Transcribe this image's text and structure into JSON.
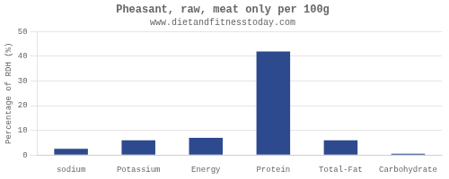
{
  "chart_data": {
    "type": "bar",
    "title": "Pheasant, raw, meat only per 100g",
    "subtitle": "www.dietandfitnesstoday.com",
    "ylabel": "Percentage of RDH (%)",
    "categories": [
      "sodium",
      "Potassium",
      "Energy",
      "Protein",
      "Total-Fat",
      "Carbohydrate"
    ],
    "values": [
      2.5,
      6.0,
      7.0,
      42.0,
      6.0,
      0.5
    ],
    "color": "#2e4a8e",
    "ylim": [
      0,
      50
    ],
    "yticks": [
      0,
      10,
      20,
      30,
      40,
      50
    ],
    "grid": true
  }
}
